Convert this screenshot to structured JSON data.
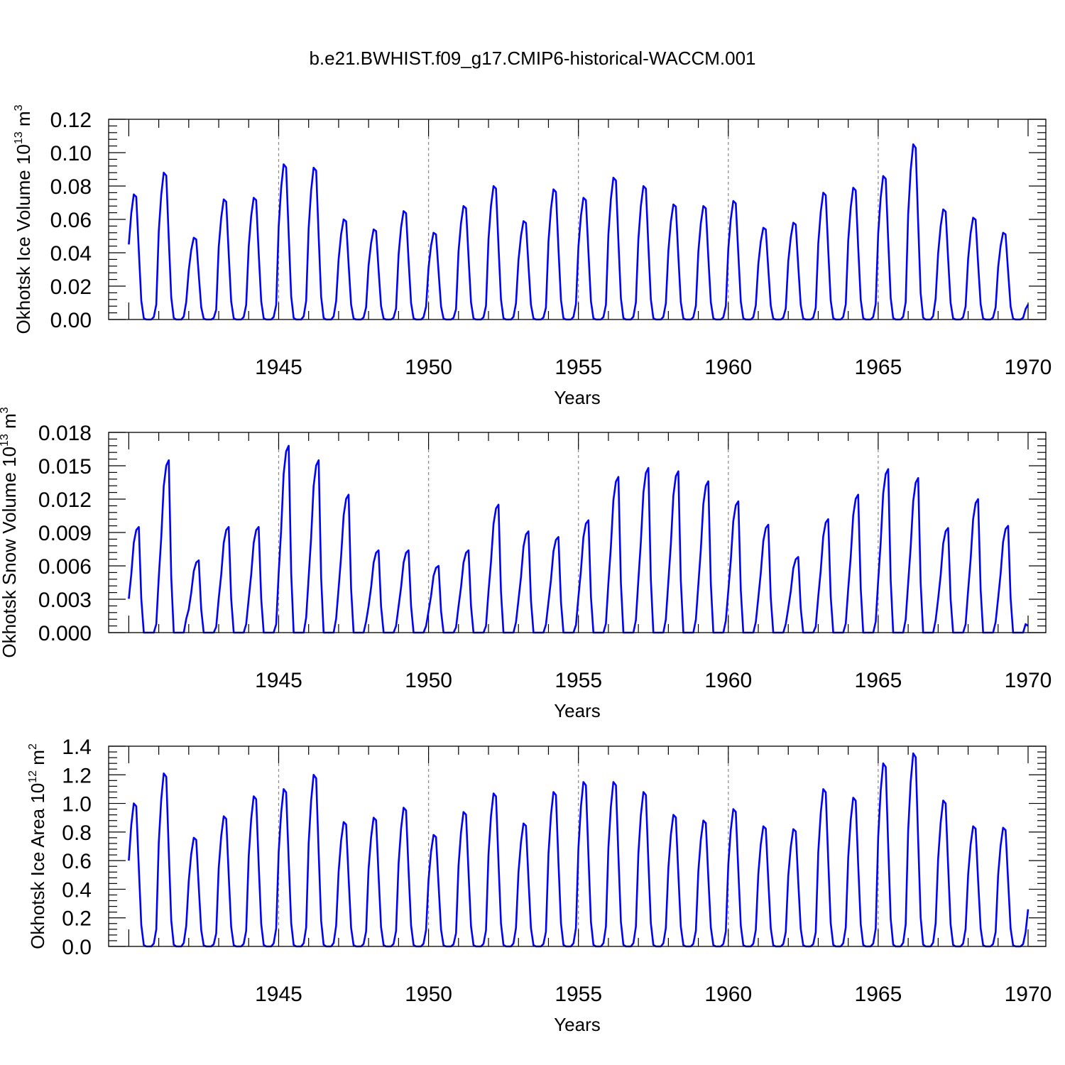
{
  "title": "b.e21.BWHIST.f09_g17.CMIP6-historical-WACCM.001",
  "colors": {
    "line": "#0000ff",
    "grid": "#888888",
    "axes": "#000000"
  },
  "chart_data": [
    {
      "type": "line",
      "title": "b.e21.BWHIST.f09_g17.CMIP6-historical-WACCM.001",
      "xlabel": "Years",
      "ylabel": "Okhotsk Ice Volume 10",
      "ylabel_exp": "13",
      "ylabel_unit": " m",
      "ylabel_unit_exp": "3",
      "xlim": [
        1939.92,
        1970.0
      ],
      "ylim": [
        0.0,
        0.12
      ],
      "yticks": [
        "0.00",
        "0.02",
        "0.04",
        "0.06",
        "0.08",
        "0.10",
        "0.12"
      ],
      "ytick_values": [
        0.0,
        0.02,
        0.04,
        0.06,
        0.08,
        0.1,
        0.12
      ],
      "xticks": [
        "1945",
        "1950",
        "1955",
        "1960",
        "1965",
        "1970"
      ],
      "xtick_values": [
        1945,
        1950,
        1955,
        1960,
        1965,
        1970
      ],
      "grid": "dashed vertical at 1945, 1950, 1955, 1960, 1965",
      "series": [
        {
          "start_year": 1940,
          "months_per_year": 12,
          "peak_month_index": 3,
          "winter_peaks": [
            0.075,
            0.088,
            0.049,
            0.072,
            0.073,
            0.093,
            0.091,
            0.06,
            0.054,
            0.065,
            0.052,
            0.068,
            0.08,
            0.059,
            0.078,
            0.073,
            0.085,
            0.08,
            0.069,
            0.068,
            0.071,
            0.055,
            0.058,
            0.076,
            0.079,
            0.086,
            0.105,
            0.066,
            0.061,
            0.052
          ],
          "end_value": 0.009
        }
      ]
    },
    {
      "type": "line",
      "xlabel": "Years",
      "ylabel": "Okhotsk Snow Volume 10",
      "ylabel_exp": "13",
      "ylabel_unit": " m",
      "ylabel_unit_exp": "3",
      "xlim": [
        1939.92,
        1970.0
      ],
      "ylim": [
        0.0,
        0.018
      ],
      "yticks": [
        "0.000",
        "0.003",
        "0.006",
        "0.009",
        "0.012",
        "0.015",
        "0.018"
      ],
      "ytick_values": [
        0.0,
        0.003,
        0.006,
        0.009,
        0.012,
        0.015,
        0.018
      ],
      "xticks": [
        "1945",
        "1950",
        "1955",
        "1960",
        "1965",
        "1970"
      ],
      "xtick_values": [
        1945,
        1950,
        1955,
        1960,
        1965,
        1970
      ],
      "grid": "dashed vertical at 1945, 1950, 1955, 1960, 1965",
      "series": [
        {
          "start_year": 1940,
          "months_per_year": 12,
          "peak_month_index": 4,
          "winter_peaks": [
            0.0095,
            0.0155,
            0.0065,
            0.0095,
            0.0095,
            0.0168,
            0.0155,
            0.0124,
            0.0074,
            0.0074,
            0.006,
            0.0074,
            0.0115,
            0.0091,
            0.0086,
            0.0101,
            0.014,
            0.0148,
            0.0145,
            0.0136,
            0.0118,
            0.0097,
            0.0068,
            0.0102,
            0.0124,
            0.0147,
            0.0139,
            0.0094,
            0.012,
            0.0096
          ],
          "end_value": 0.0006
        }
      ]
    },
    {
      "type": "line",
      "xlabel": "Years",
      "ylabel": "Okhotsk Ice Area 10",
      "ylabel_exp": "12",
      "ylabel_unit": " m",
      "ylabel_unit_exp": "2",
      "xlim": [
        1939.92,
        1970.0
      ],
      "ylim": [
        0.0,
        1.4
      ],
      "yticks": [
        "0.0",
        "0.2",
        "0.4",
        "0.6",
        "0.8",
        "1.0",
        "1.2",
        "1.4"
      ],
      "ytick_values": [
        0.0,
        0.2,
        0.4,
        0.6,
        0.8,
        1.0,
        1.2,
        1.4
      ],
      "xticks": [
        "1945",
        "1950",
        "1955",
        "1960",
        "1965",
        "1970"
      ],
      "xtick_values": [
        1945,
        1950,
        1955,
        1960,
        1965,
        1970
      ],
      "grid": "dashed vertical at 1945, 1950, 1955, 1960, 1965",
      "series": [
        {
          "start_year": 1940,
          "months_per_year": 12,
          "peak_month_index": 3,
          "winter_peaks": [
            1.0,
            1.21,
            0.76,
            0.91,
            1.05,
            1.1,
            1.2,
            0.87,
            0.9,
            0.97,
            0.78,
            0.94,
            1.07,
            0.86,
            1.08,
            1.15,
            1.15,
            1.08,
            0.92,
            0.88,
            0.96,
            0.84,
            0.82,
            1.1,
            1.04,
            1.28,
            1.35,
            1.02,
            0.84,
            0.83
          ],
          "end_value": 0.26
        }
      ]
    }
  ]
}
